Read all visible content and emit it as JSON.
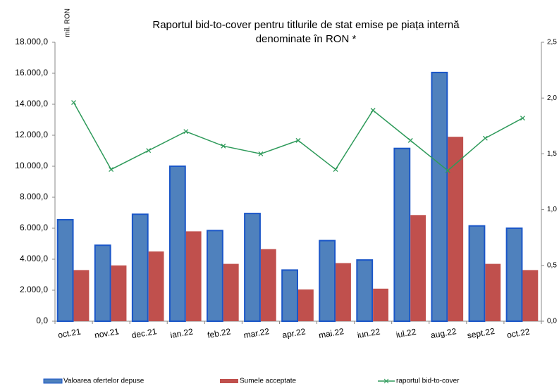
{
  "chart_data": {
    "type": "bar_line",
    "title": [
      "Raportul bid-to-cover pentru titlurile de stat emise pe piața internă",
      "denominate în RON *"
    ],
    "y_label": "mil. RON",
    "categories": [
      "oct.21",
      "nov.21",
      "dec.21",
      "ian.22",
      "feb.22",
      "mar.22",
      "apr.22",
      "mai.22",
      "iun.22",
      "iul.22",
      "aug.22",
      "sept.22",
      "oct.22"
    ],
    "series": [
      {
        "name": "Valoarea ofertelor depuse",
        "type": "bar",
        "color": "#4f81bd",
        "stroke": "#1a56c8",
        "values": [
          6550,
          4900,
          6900,
          10000,
          5850,
          6950,
          3300,
          5200,
          3950,
          11150,
          16050,
          6150,
          6000
        ]
      },
      {
        "name": "Sumele acceptate",
        "type": "bar",
        "color": "#c0504d",
        "values": [
          3300,
          3600,
          4500,
          5800,
          3700,
          4650,
          2050,
          3750,
          2100,
          6850,
          11900,
          3700,
          3300
        ]
      },
      {
        "name": "raportul bid-to-cover",
        "type": "line",
        "axis": "y2",
        "color": "#2e9a5a",
        "values": [
          1.96,
          1.36,
          1.53,
          1.7,
          1.57,
          1.5,
          1.62,
          1.36,
          1.89,
          1.62,
          1.35,
          1.64,
          1.82
        ]
      }
    ],
    "ylim": [
      0,
      18000
    ],
    "yticks": [
      {
        "value": 0,
        "label": "0,0"
      },
      {
        "value": 2000,
        "label": "2.000,0"
      },
      {
        "value": 4000,
        "label": "4.000,0"
      },
      {
        "value": 6000,
        "label": "6.000,0"
      },
      {
        "value": 8000,
        "label": "8.000,0"
      },
      {
        "value": 10000,
        "label": "10.000,0"
      },
      {
        "value": 12000,
        "label": "12.000,0"
      },
      {
        "value": 14000,
        "label": "14.000,0"
      },
      {
        "value": 16000,
        "label": "16.000,0"
      },
      {
        "value": 18000,
        "label": "18.000,0"
      }
    ],
    "y2lim": [
      0,
      2.5
    ],
    "y2ticks": [
      {
        "value": 0,
        "label": "0,0"
      },
      {
        "value": 0.5,
        "label": "0,5"
      },
      {
        "value": 1,
        "label": "1,0"
      },
      {
        "value": 1.5,
        "label": "1,5"
      },
      {
        "value": 2,
        "label": "2,0"
      },
      {
        "value": 2.5,
        "label": "2,5"
      }
    ],
    "grid": false,
    "legend": "bottom"
  }
}
